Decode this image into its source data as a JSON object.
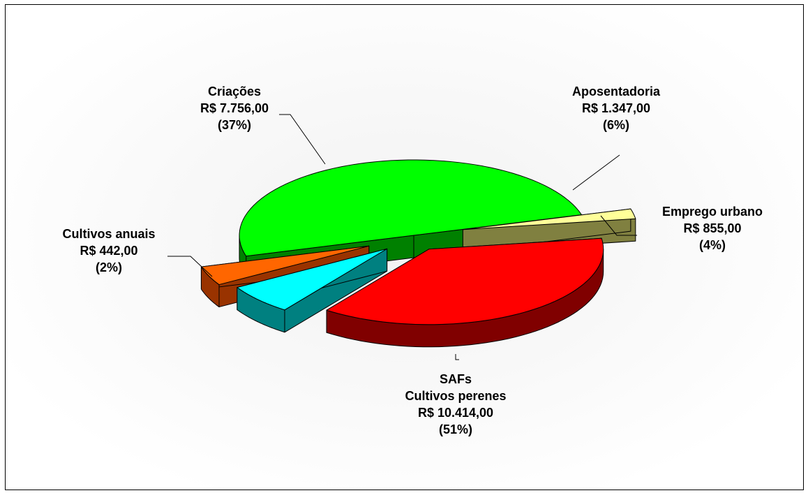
{
  "chart_data": {
    "type": "pie",
    "three_d": true,
    "exploded": true,
    "slices": [
      {
        "label": "SAFs Cultivos perenes",
        "label_lines": [
          "SAFs",
          "Cultivos perenes"
        ],
        "value_text": "R$ 10.414,00",
        "percent_text": "(51%)",
        "value": 10414,
        "percent": 51,
        "color": "#00ff00",
        "side_color": "#008000"
      },
      {
        "label": "Cultivos anuais",
        "label_lines": [
          "Cultivos anuais"
        ],
        "value_text": "R$ 442,00",
        "percent_text": "(2%)",
        "value": 442,
        "percent": 2,
        "color": "#ffff99",
        "side_color": "#808040"
      },
      {
        "label": "Criações",
        "label_lines": [
          "Criações"
        ],
        "value_text": "R$ 7.756,00",
        "percent_text": "(37%)",
        "value": 7756,
        "percent": 37,
        "color": "#ff0000",
        "side_color": "#800000"
      },
      {
        "label": "Aposentadoria",
        "label_lines": [
          "Aposentadoria"
        ],
        "value_text": "R$ 1.347,00",
        "percent_text": "(6%)",
        "value": 1347,
        "percent": 6,
        "color": "#00ffff",
        "side_color": "#008080"
      },
      {
        "label": "Emprego urbano",
        "label_lines": [
          "Emprego urbano"
        ],
        "value_text": "R$ 855,00",
        "percent_text": "(4%)",
        "value": 855,
        "percent": 4,
        "color": "#ff6600",
        "side_color": "#993300"
      }
    ]
  }
}
